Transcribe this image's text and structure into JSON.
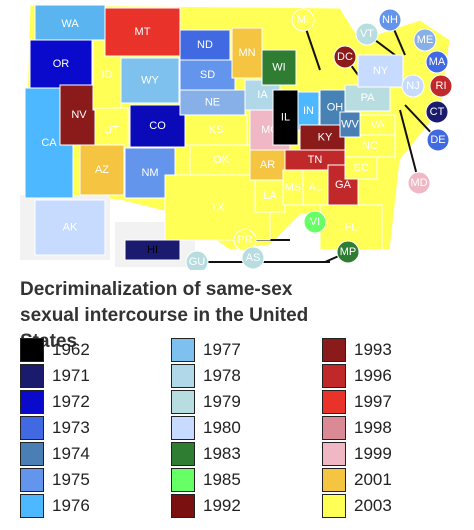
{
  "map": {
    "states": [
      {
        "label": "WA",
        "color": "#5ab4f0"
      },
      {
        "label": "OR",
        "color": "#0a0acd"
      },
      {
        "label": "CA",
        "color": "#4db8ff"
      },
      {
        "label": "NV",
        "color": "#8b1a1a"
      },
      {
        "label": "ID",
        "color": "#ffff55"
      },
      {
        "label": "MT",
        "color": "#e8322a"
      },
      {
        "label": "WY",
        "color": "#7ec0ee"
      },
      {
        "label": "UT",
        "color": "#ffff55"
      },
      {
        "label": "AZ",
        "color": "#f5c542"
      },
      {
        "label": "CO",
        "color": "#0a0ab8"
      },
      {
        "label": "NM",
        "color": "#6495ed"
      },
      {
        "label": "ND",
        "color": "#4169e1"
      },
      {
        "label": "SD",
        "color": "#6495ed"
      },
      {
        "label": "NE",
        "color": "#87b0e8"
      },
      {
        "label": "KS",
        "color": "#ffff55"
      },
      {
        "label": "OK",
        "color": "#ffff55"
      },
      {
        "label": "TX",
        "color": "#ffff55"
      },
      {
        "label": "MN",
        "color": "#f5c542"
      },
      {
        "label": "IA",
        "color": "#b0d8e8"
      },
      {
        "label": "MO",
        "color": "#efb8c4"
      },
      {
        "label": "AR",
        "color": "#f5c542"
      },
      {
        "label": "LA",
        "color": "#ffff55"
      },
      {
        "label": "WI",
        "color": "#2e7d32"
      },
      {
        "label": "IL",
        "color": "#000000"
      },
      {
        "label": "IN",
        "color": "#4db8ff"
      },
      {
        "label": "OH",
        "color": "#4682b4"
      },
      {
        "label": "KY",
        "color": "#8b1a1a"
      },
      {
        "label": "TN",
        "color": "#c0282a"
      },
      {
        "label": "MS",
        "color": "#ffff55"
      },
      {
        "label": "AL",
        "color": "#ffff55"
      },
      {
        "label": "GA",
        "color": "#c0282a"
      },
      {
        "label": "FL",
        "color": "#ffff55"
      },
      {
        "label": "SC",
        "color": "#ffff55"
      },
      {
        "label": "NC",
        "color": "#ffff55"
      },
      {
        "label": "VA",
        "color": "#ffff55"
      },
      {
        "label": "WV",
        "color": "#4a7fb5"
      },
      {
        "label": "PA",
        "color": "#b8dde0"
      },
      {
        "label": "NY",
        "color": "#c6dbff"
      },
      {
        "label": "AK",
        "color": "#c6dbff"
      },
      {
        "label": "HI",
        "color": "#1a1a6e"
      },
      {
        "label": "MI",
        "color": "#ffff55"
      },
      {
        "label": "VT",
        "color": "#b8dde0"
      },
      {
        "label": "NH",
        "color": "#6495ed"
      },
      {
        "label": "ME",
        "color": "#87b0e8"
      },
      {
        "label": "MA",
        "color": "#4169e1"
      },
      {
        "label": "RI",
        "color": "#c0282a"
      },
      {
        "label": "CT",
        "color": "#1a1a6e"
      },
      {
        "label": "NJ",
        "color": "#c6dbff"
      },
      {
        "label": "DE",
        "color": "#4169e1"
      },
      {
        "label": "MD",
        "color": "#efb8c4"
      },
      {
        "label": "DC",
        "color": "#8b1a1a"
      },
      {
        "label": "PR",
        "color": "#ffff55"
      },
      {
        "label": "VI",
        "color": "#66ff66"
      },
      {
        "label": "GU",
        "color": "#b8dde0"
      },
      {
        "label": "AS",
        "color": "#b8dde0"
      },
      {
        "label": "MP",
        "color": "#2e7d32"
      }
    ]
  },
  "title": "Decriminalization of same-sex sexual intercourse in the United States",
  "legend": [
    {
      "label": "1962",
      "color": "#000000"
    },
    {
      "label": "1971",
      "color": "#1a1a6e"
    },
    {
      "label": "1972",
      "color": "#0a0acd"
    },
    {
      "label": "1973",
      "color": "#4169e1"
    },
    {
      "label": "1974",
      "color": "#4a7fb5"
    },
    {
      "label": "1975",
      "color": "#6495ed"
    },
    {
      "label": "1976",
      "color": "#4db8ff"
    },
    {
      "label": "1977",
      "color": "#7ec0ee"
    },
    {
      "label": "1978",
      "color": "#b0d8e8"
    },
    {
      "label": "1979",
      "color": "#b8dde0"
    },
    {
      "label": "1980",
      "color": "#c6dbff"
    },
    {
      "label": "1983",
      "color": "#2e7d32"
    },
    {
      "label": "1985",
      "color": "#66ff66"
    },
    {
      "label": "1992",
      "color": "#7b1010"
    },
    {
      "label": "1993",
      "color": "#8b1a1a"
    },
    {
      "label": "1996",
      "color": "#c0282a"
    },
    {
      "label": "1997",
      "color": "#e8322a"
    },
    {
      "label": "1998",
      "color": "#d98a95"
    },
    {
      "label": "1999",
      "color": "#efb8c4"
    },
    {
      "label": "2001",
      "color": "#f5c542"
    },
    {
      "label": "2003",
      "color": "#ffff55"
    }
  ]
}
